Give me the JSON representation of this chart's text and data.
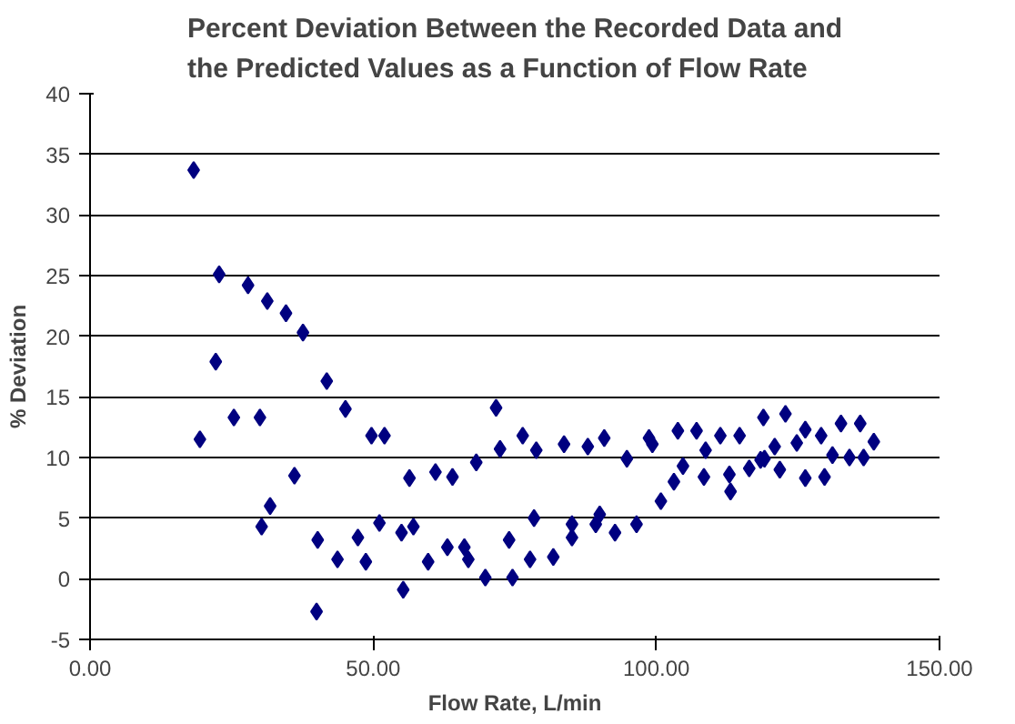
{
  "chart_data": {
    "type": "scatter",
    "title": "Percent Deviation Between the Recorded Data and\nthe Predicted Values as a Function of Flow Rate",
    "xlabel": "Flow Rate, L/min",
    "ylabel": "% Deviation",
    "xlim": [
      0,
      150
    ],
    "xticks": [
      {
        "value": 0,
        "label": "0.00"
      },
      {
        "value": 50,
        "label": "50.00"
      },
      {
        "value": 100,
        "label": "100.00"
      },
      {
        "value": 150,
        "label": "150.00"
      }
    ],
    "ylim": [
      -5,
      40
    ],
    "yticks": [
      -5,
      0,
      5,
      10,
      15,
      20,
      25,
      30,
      35,
      40
    ],
    "grid": "y",
    "marker": "diamond",
    "series": [
      {
        "color": "#000080",
        "x": [
          18.3,
          19.4,
          22.8,
          22.2,
          25.4,
          27.9,
          30.0,
          30.3,
          31.3,
          31.8,
          34.6,
          36.1,
          37.6,
          40.0,
          40.2,
          41.8,
          43.7,
          45.1,
          47.3,
          48.7,
          49.7,
          51.1,
          52.0,
          55.0,
          55.3,
          56.4,
          57.1,
          59.7,
          61.0,
          63.1,
          64.0,
          66.1,
          66.8,
          68.2,
          69.8,
          71.7,
          72.4,
          74.0,
          74.6,
          76.4,
          77.7,
          78.4,
          78.8,
          81.8,
          83.7,
          85.1,
          85.1,
          87.9,
          89.3,
          90.0,
          90.8,
          92.7,
          94.8,
          96.5,
          98.7,
          99.3,
          100.8,
          103.1,
          103.8,
          104.7,
          107.1,
          108.4,
          108.7,
          111.3,
          112.9,
          113.1,
          114.7,
          116.4,
          118.4,
          118.9,
          119.1,
          120.9,
          121.8,
          122.8,
          124.8,
          126.3,
          126.3,
          129.1,
          129.7,
          131.1,
          132.6,
          134.1,
          136.0,
          136.6,
          138.4
        ],
        "values": [
          33.7,
          11.5,
          25.1,
          17.9,
          13.3,
          24.2,
          13.3,
          4.3,
          22.9,
          6.0,
          21.9,
          8.5,
          20.3,
          -2.7,
          3.2,
          16.3,
          1.6,
          14.0,
          3.4,
          1.4,
          11.8,
          4.6,
          11.8,
          3.8,
          -0.9,
          8.3,
          4.3,
          1.4,
          8.8,
          2.6,
          8.4,
          2.6,
          1.6,
          9.6,
          0.1,
          14.1,
          10.7,
          3.2,
          0.1,
          11.8,
          1.6,
          5.0,
          10.6,
          1.8,
          11.1,
          4.5,
          3.4,
          10.9,
          4.5,
          5.3,
          11.6,
          3.8,
          9.9,
          4.5,
          11.6,
          11.1,
          6.4,
          8.0,
          12.2,
          9.3,
          12.2,
          8.4,
          10.6,
          11.8,
          8.6,
          7.2,
          11.8,
          9.1,
          9.8,
          13.3,
          9.9,
          10.9,
          9.0,
          13.6,
          11.2,
          12.3,
          8.3,
          11.8,
          8.4,
          10.2,
          12.8,
          10.0,
          12.8,
          10.0,
          11.3
        ]
      }
    ]
  }
}
